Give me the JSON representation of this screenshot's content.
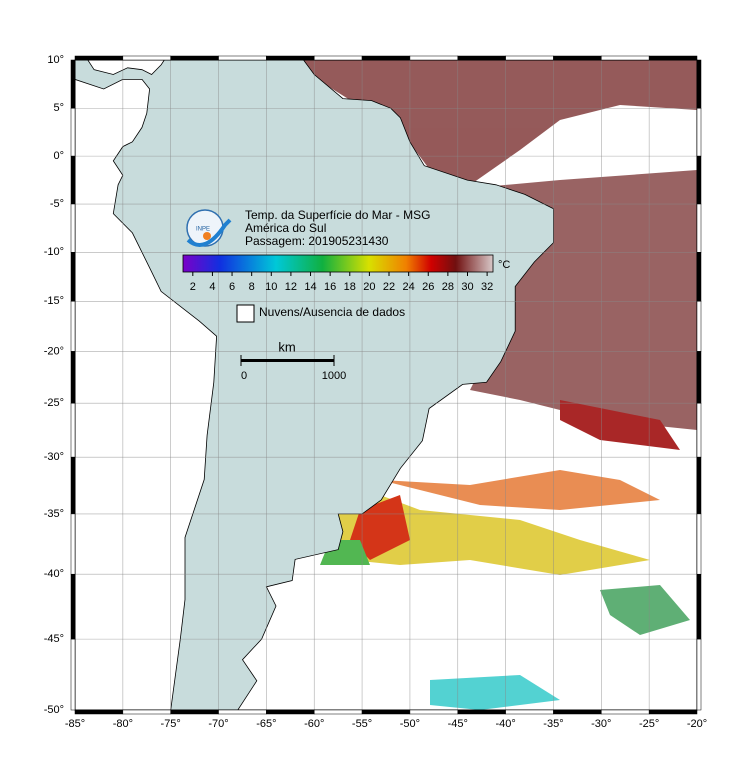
{
  "map": {
    "lon_lim": [
      -85,
      -20
    ],
    "lat_lim": [
      -50,
      10
    ],
    "lon_ticks": [
      {
        "value": -85,
        "label": "-85°"
      },
      {
        "value": -80,
        "label": "-80°"
      },
      {
        "value": -75,
        "label": "-75°"
      },
      {
        "value": -70,
        "label": "-70°"
      },
      {
        "value": -65,
        "label": "-65°"
      },
      {
        "value": -60,
        "label": "-60°"
      },
      {
        "value": -55,
        "label": "-55°"
      },
      {
        "value": -50,
        "label": "-50°"
      },
      {
        "value": -45,
        "label": "-45°"
      },
      {
        "value": -40,
        "label": "-40°"
      },
      {
        "value": -35,
        "label": "-35°"
      },
      {
        "value": -30,
        "label": "-30°"
      },
      {
        "value": -25,
        "label": "-25°"
      },
      {
        "value": -20,
        "label": "-20°"
      }
    ],
    "lat_ticks": [
      {
        "value": 10,
        "label": "10°"
      },
      {
        "value": 5,
        "label": "5°"
      },
      {
        "value": 0,
        "label": "0°"
      },
      {
        "value": -5,
        "label": "-5°"
      },
      {
        "value": -10,
        "label": "-10°"
      },
      {
        "value": -15,
        "label": "-15°"
      },
      {
        "value": -20,
        "label": "-20°"
      },
      {
        "value": -25,
        "label": "-25°"
      },
      {
        "value": -30,
        "label": "-30°"
      },
      {
        "value": -35,
        "label": "-35°"
      },
      {
        "value": -40,
        "label": "-40°"
      },
      {
        "value": -45,
        "label": "-45°"
      },
      {
        "value": -50,
        "label": "-50°"
      }
    ]
  },
  "logo": "INPE",
  "title": "Temp. da Superfície do Mar - MSG",
  "region": "América do Sul",
  "pass": "Passagem: 201905231430",
  "colorbar": {
    "lim": [
      1,
      32.6
    ],
    "ticks": [
      2,
      4,
      6,
      8,
      10,
      12,
      14,
      16,
      18,
      20,
      22,
      24,
      26,
      28,
      30,
      32
    ],
    "unit": "°C"
  },
  "legend": "Nuvens/Ausencia de dados",
  "scale_bar": {
    "unit": "km",
    "ticks": [
      0,
      1000
    ]
  }
}
